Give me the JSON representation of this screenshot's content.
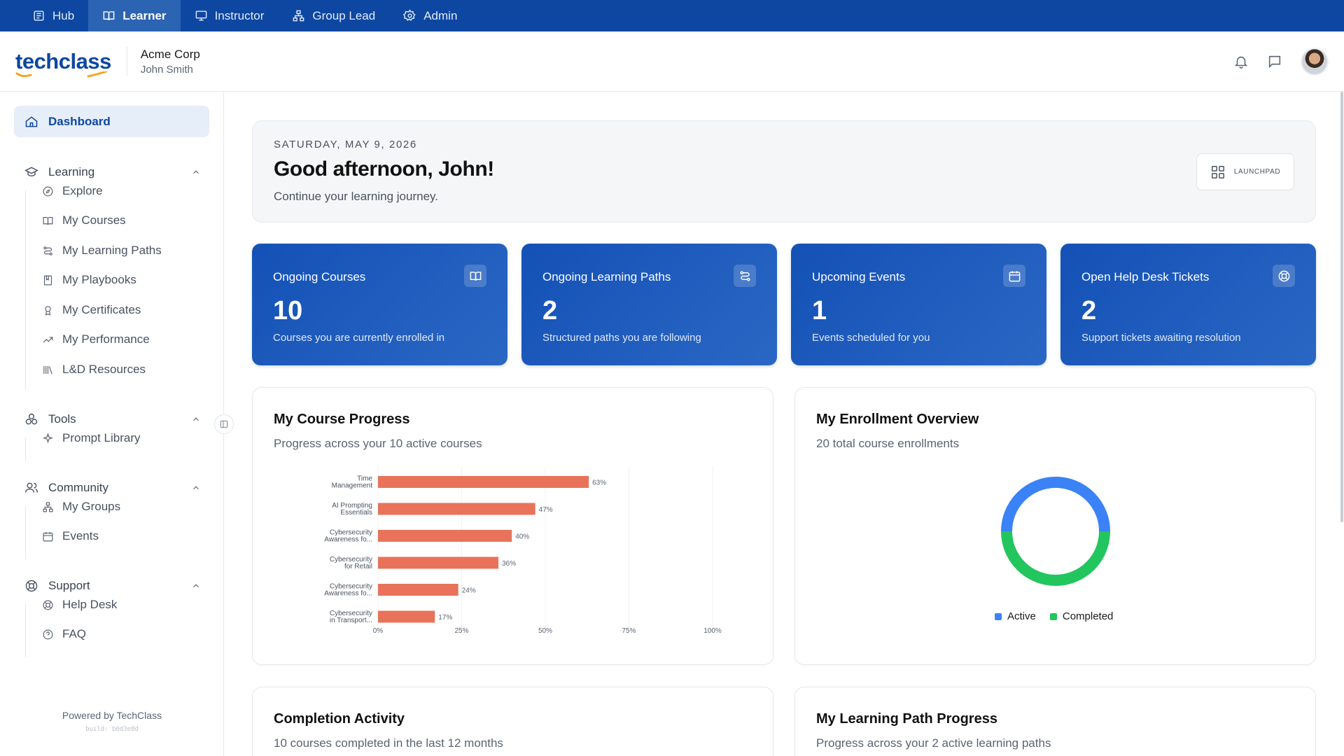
{
  "topnav": [
    {
      "label": "Hub",
      "icon": "hub-icon",
      "active": false
    },
    {
      "label": "Learner",
      "icon": "book-open-icon",
      "active": true
    },
    {
      "label": "Instructor",
      "icon": "presentation-icon",
      "active": false
    },
    {
      "label": "Group Lead",
      "icon": "network-icon",
      "active": false
    },
    {
      "label": "Admin",
      "icon": "gear-icon",
      "active": false
    }
  ],
  "header": {
    "logo": "techclass",
    "org_name": "Acme Corp",
    "user_name": "John Smith"
  },
  "sidebar": {
    "dashboard": "Dashboard",
    "learning": {
      "label": "Learning",
      "items": [
        "Explore",
        "My Courses",
        "My Learning Paths",
        "My Playbooks",
        "My Certificates",
        "My Performance",
        "L&D Resources"
      ]
    },
    "tools": {
      "label": "Tools",
      "items": [
        "Prompt Library"
      ]
    },
    "community": {
      "label": "Community",
      "items": [
        "My Groups",
        "Events"
      ]
    },
    "support": {
      "label": "Support",
      "items": [
        "Help Desk",
        "FAQ"
      ]
    },
    "powered_by": "Powered by TechClass",
    "build": "build: b0d3e8d"
  },
  "greeting": {
    "date": "SATURDAY, MAY 9, 2026",
    "title": "Good afternoon, John!",
    "subtitle": "Continue your learning journey.",
    "launchpad": "LAUNCHPAD"
  },
  "stats": [
    {
      "title": "Ongoing Courses",
      "value": "10",
      "desc": "Courses you are currently enrolled in",
      "icon": "book-icon"
    },
    {
      "title": "Ongoing Learning Paths",
      "value": "2",
      "desc": "Structured paths you are following",
      "icon": "route-icon"
    },
    {
      "title": "Upcoming Events",
      "value": "1",
      "desc": "Events scheduled for you",
      "icon": "calendar-icon"
    },
    {
      "title": "Open Help Desk Tickets",
      "value": "2",
      "desc": "Support tickets awaiting resolution",
      "icon": "lifebuoy-icon"
    }
  ],
  "course_progress": {
    "title": "My Course Progress",
    "subtitle": "Progress across your 10 active courses"
  },
  "enrollment": {
    "title": "My Enrollment Overview",
    "subtitle": "20 total course enrollments"
  },
  "completion": {
    "title": "Completion Activity",
    "subtitle": "10 courses completed in the last 12 months"
  },
  "learning_path_progress": {
    "title": "My Learning Path Progress",
    "subtitle": "Progress across your 2 active learning paths"
  },
  "colors": {
    "brand": "#0d47a1",
    "bar": "#e8735a",
    "active": "#3b82f6",
    "completed": "#22c55e"
  },
  "chart_data": [
    {
      "type": "bar",
      "orientation": "horizontal",
      "categories": [
        [
          "Time",
          "Management"
        ],
        [
          "AI Prompting",
          "Essentials"
        ],
        [
          "Cybersecurity",
          "Awareness fo..."
        ],
        [
          "Cybersecurity",
          "for Retail"
        ],
        [
          "Cybersecurity",
          "Awareness fo..."
        ],
        [
          "Cybersecurity",
          "in Transport..."
        ]
      ],
      "values": [
        63,
        47,
        40,
        36,
        24,
        17
      ],
      "value_labels": [
        "63%",
        "47%",
        "40%",
        "36%",
        "24%",
        "17%"
      ],
      "xlim": [
        0,
        100
      ],
      "xticks": [
        "0%",
        "25%",
        "50%",
        "75%",
        "100%"
      ],
      "grid": true
    },
    {
      "type": "pie",
      "donut": true,
      "labels": [
        "Active",
        "Completed"
      ],
      "values": [
        10,
        10
      ],
      "colors": [
        "#3b82f6",
        "#22c55e"
      ],
      "legend": "bottom"
    }
  ]
}
